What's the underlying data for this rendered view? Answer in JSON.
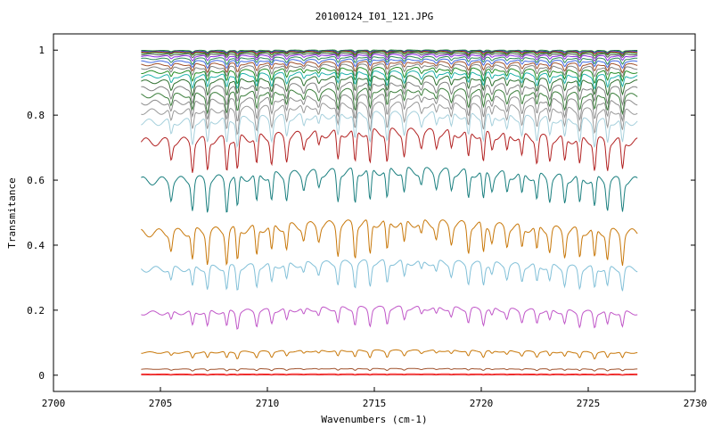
{
  "chart_data": {
    "type": "line",
    "title": "20100124_I01_121.JPG",
    "xlabel": "Wavenumbers (cm-1)",
    "ylabel": "Transmitance",
    "xlim": [
      2700,
      2730
    ],
    "ylim": [
      -0.05,
      1.05
    ],
    "x_ticks": [
      "2700",
      "2705",
      "2710",
      "2715",
      "2720",
      "2725",
      "2730"
    ],
    "y_ticks": [
      "0",
      "0.2",
      "0.4",
      "0.6",
      "0.8",
      "1"
    ],
    "x_range": [
      2704.1,
      2727.3
    ],
    "grid": false,
    "legend": "none",
    "spectral_lines": [
      2705.5,
      2706.5,
      2707.2,
      2708.1,
      2708.6,
      2709.5,
      2710.2,
      2710.9,
      2711.7,
      2712.4,
      2713.3,
      2714.1,
      2714.8,
      2715.6,
      2716.4,
      2717.2,
      2717.9,
      2718.6,
      2719.4,
      2720.1,
      2720.5,
      2721.2,
      2721.9,
      2722.6,
      2723.2,
      2723.9,
      2724.6,
      2725.3,
      2725.9,
      2726.6
    ],
    "series": [
      {
        "baseline": 1.0,
        "depth": 0.005,
        "color": "#2f8f2f"
      },
      {
        "baseline": 0.998,
        "depth": 0.006,
        "color": "#1e3cb4"
      },
      {
        "baseline": 0.996,
        "depth": 0.008,
        "color": "#b22222"
      },
      {
        "baseline": 0.994,
        "depth": 0.01,
        "color": "#228b22"
      },
      {
        "baseline": 0.99,
        "depth": 0.012,
        "color": "#555555"
      },
      {
        "baseline": 0.985,
        "depth": 0.015,
        "color": "#8a2be2"
      },
      {
        "baseline": 0.978,
        "depth": 0.018,
        "color": "#2e8b57"
      },
      {
        "baseline": 0.97,
        "depth": 0.02,
        "color": "#4169e1"
      },
      {
        "baseline": 0.962,
        "depth": 0.025,
        "color": "#a0522d"
      },
      {
        "baseline": 0.953,
        "depth": 0.03,
        "color": "#808080"
      },
      {
        "baseline": 0.942,
        "depth": 0.035,
        "color": "#228b22"
      },
      {
        "baseline": 0.93,
        "depth": 0.04,
        "color": "#20b2aa"
      },
      {
        "baseline": 0.915,
        "depth": 0.045,
        "color": "#2f6f2f"
      },
      {
        "baseline": 0.895,
        "depth": 0.05,
        "color": "#808080"
      },
      {
        "baseline": 0.875,
        "depth": 0.055,
        "color": "#3a7d3a"
      },
      {
        "baseline": 0.855,
        "depth": 0.06,
        "color": "#8c8c8c"
      },
      {
        "baseline": 0.83,
        "depth": 0.07,
        "color": "#999999"
      },
      {
        "baseline": 0.8,
        "depth": 0.08,
        "color": "#a6d0dc"
      },
      {
        "baseline": 0.745,
        "depth": 0.1,
        "color": "#b22222"
      },
      {
        "baseline": 0.625,
        "depth": 0.1,
        "color": "#1a7f7f"
      },
      {
        "baseline": 0.465,
        "depth": 0.1,
        "color": "#c8780a"
      },
      {
        "baseline": 0.345,
        "depth": 0.07,
        "color": "#82c0d8"
      },
      {
        "baseline": 0.205,
        "depth": 0.05,
        "color": "#c056c8"
      },
      {
        "baseline": 0.075,
        "depth": 0.02,
        "color": "#c8780a"
      },
      {
        "baseline": 0.02,
        "depth": 0.006,
        "color": "#a0522d"
      },
      {
        "baseline": 0.004,
        "depth": 0.002,
        "color": "#ff2020"
      },
      {
        "baseline": 0.001,
        "depth": 0.001,
        "color": "#e03c3c"
      }
    ]
  }
}
